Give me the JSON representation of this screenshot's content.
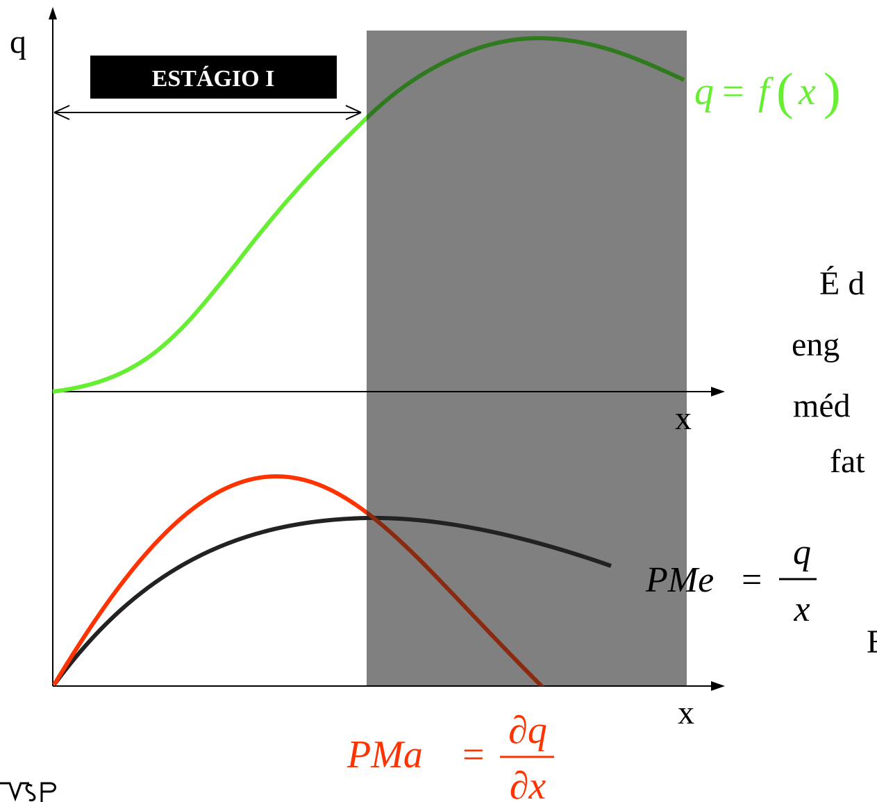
{
  "axes": {
    "top_y_label": "q",
    "top_x_label": "x",
    "bottom_x_label": "x"
  },
  "stage_box": {
    "label": "ESTÁGIO I"
  },
  "equations": {
    "production": {
      "lhs": "q",
      "eq": "=",
      "f": "f",
      "open": "(",
      "arg": "x",
      "close": ")"
    },
    "average": {
      "lhs": "PMe",
      "eq": "=",
      "num": "q",
      "den": "x"
    },
    "marginal": {
      "lhs": "PMa",
      "eq": "=",
      "num": "∂q",
      "den": "∂x"
    }
  },
  "side_text": {
    "line1": "É d",
    "line2": "eng",
    "line3": "méd",
    "line4": "fat",
    "line5": "E"
  },
  "colors": {
    "production_curve": "#66ee33",
    "production_curve_shaded": "#2f7a1e",
    "marginal_curve": "#ff3300",
    "marginal_curve_shaded": "#8a2a10",
    "average_curve": "#222222",
    "shaded_region": "#808080",
    "stage_box": "#000000"
  },
  "logo": {
    "name": "usp-logo"
  }
}
